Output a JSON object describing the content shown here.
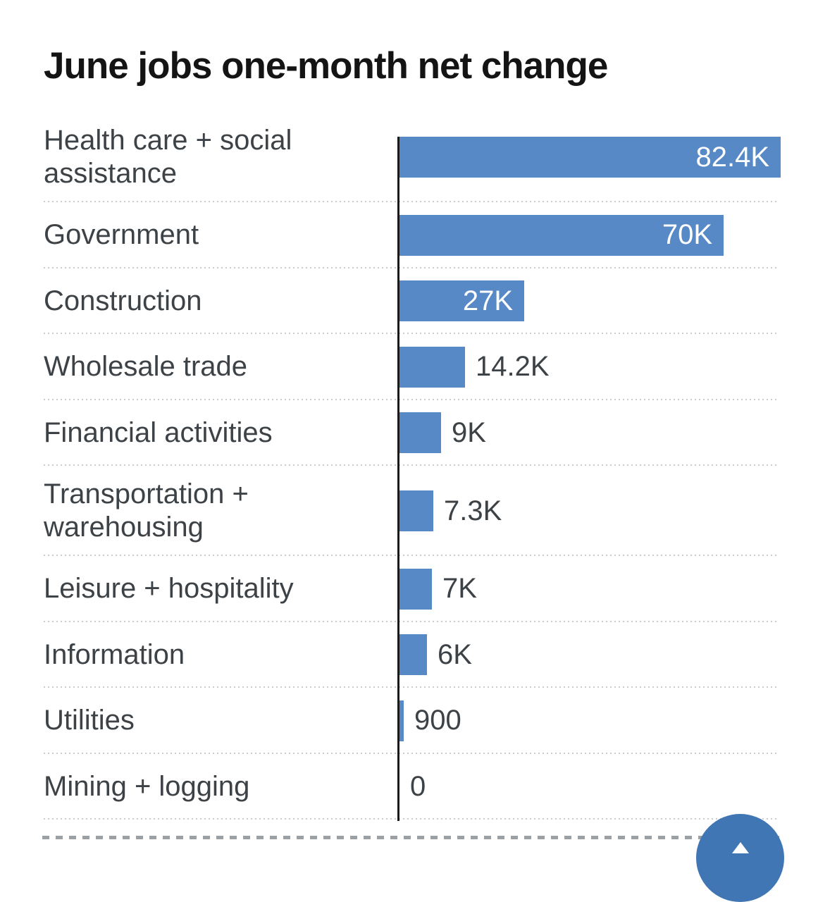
{
  "chart_data": {
    "type": "bar",
    "orientation": "horizontal",
    "title": "June jobs one-month net change",
    "baseline": 0,
    "xlim": [
      0,
      82400
    ],
    "grid": "dotted-row-separators",
    "legend": "none",
    "categories": [
      "Health care + social assistance",
      "Government",
      "Construction",
      "Wholesale trade",
      "Financial activities",
      "Transportation + warehousing",
      "Leisure + hospitality",
      "Information",
      "Utilities",
      "Mining + logging"
    ],
    "values": [
      82400,
      70000,
      27000,
      14200,
      9000,
      7300,
      7000,
      6000,
      900,
      0
    ],
    "rows": [
      {
        "label": "Health care + social assistance",
        "lines": [
          "Health care + social",
          "assistance"
        ],
        "value": 82400,
        "display": "82.4K",
        "label_inside": true
      },
      {
        "label": "Government",
        "lines": [
          "Government"
        ],
        "value": 70000,
        "display": "70K",
        "label_inside": true
      },
      {
        "label": "Construction",
        "lines": [
          "Construction"
        ],
        "value": 27000,
        "display": "27K",
        "label_inside": true
      },
      {
        "label": "Wholesale trade",
        "lines": [
          "Wholesale trade"
        ],
        "value": 14200,
        "display": "14.2K",
        "label_inside": false
      },
      {
        "label": "Financial activities",
        "lines": [
          "Financial activities"
        ],
        "value": 9000,
        "display": "9K",
        "label_inside": false
      },
      {
        "label": "Transportation + warehousing",
        "lines": [
          "Transportation +",
          "warehousing"
        ],
        "value": 7300,
        "display": "7.3K",
        "label_inside": false
      },
      {
        "label": "Leisure + hospitality",
        "lines": [
          "Leisure + hospitality"
        ],
        "value": 7000,
        "display": "7K",
        "label_inside": false
      },
      {
        "label": "Information",
        "lines": [
          "Information"
        ],
        "value": 6000,
        "display": "6K",
        "label_inside": false
      },
      {
        "label": "Utilities",
        "lines": [
          "Utilities"
        ],
        "value": 900,
        "display": "900",
        "label_inside": false
      },
      {
        "label": "Mining + logging",
        "lines": [
          "Mining + logging"
        ],
        "value": 0,
        "display": "0",
        "label_inside": false
      }
    ]
  },
  "colors": {
    "bar": "#5689c5",
    "bar_label_inside": "#ffffff",
    "text": "#3d4247",
    "title": "#141414",
    "axis": "#1a1a1a",
    "separator": "#cccccc",
    "divider": "#9aa0a4",
    "fab": "#4176b5"
  },
  "fab": {
    "icon": "arrow-up-icon"
  }
}
